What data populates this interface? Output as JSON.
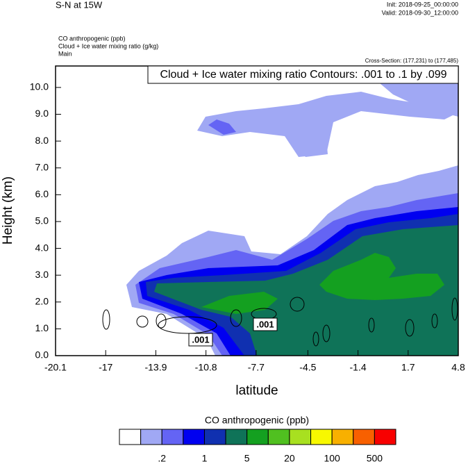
{
  "chart_data": {
    "type": "contour",
    "title": "S-N at 15W",
    "init": "Init: 2018-09-25_00:00:00",
    "valid": "Valid: 2018-09-30_12:00:00",
    "field_lines": [
      "CO anthropogenic   (ppb)",
      "Cloud + Ice water mixing ratio   (g/kg)",
      "Main"
    ],
    "cross_section": "Cross-Section: (177,231) to (177,485)",
    "contour_title": "Cloud + Ice water mixing ratio Contours: .001 to .1 by .099",
    "contour_labels": [
      ".001",
      ".001"
    ],
    "x_label": "latitude",
    "y_label": "Height (km)",
    "xlim": [
      -20.1,
      4.8
    ],
    "xticks": [
      -20.1,
      -17.0,
      -13.9,
      -10.8,
      -7.7,
      -4.5,
      -1.4,
      1.7,
      4.8
    ],
    "ylim": [
      0,
      10.8
    ],
    "yticks": [
      {
        "value": 0,
        "label": "0.0"
      },
      {
        "value": 1,
        "label": "1.0"
      },
      {
        "value": 2,
        "label": "2.0"
      },
      {
        "value": 3,
        "label": "3.0"
      },
      {
        "value": 4,
        "label": "4.0"
      },
      {
        "value": 5,
        "label": "5.0"
      },
      {
        "value": 6,
        "label": "6.0"
      },
      {
        "value": 7,
        "label": "7.0"
      },
      {
        "value": 8,
        "label": "8.0"
      },
      {
        "value": 9,
        "label": "9.0"
      },
      {
        "value": 10,
        "label": "10.0"
      }
    ],
    "colorbar": {
      "title": "CO anthropogenic  (ppb)",
      "colors": [
        "#ffffff",
        "#a0a8f4",
        "#6464f4",
        "#0000f0",
        "#1030b0",
        "#0f7358",
        "#14a020",
        "#50c020",
        "#a8e020",
        "#f8f800",
        "#f8b000",
        "#f86000",
        "#f80000"
      ],
      "ticks": [
        {
          "value": 0.2,
          "label": ".2"
        },
        1,
        5,
        20,
        100,
        500
      ]
    }
  }
}
